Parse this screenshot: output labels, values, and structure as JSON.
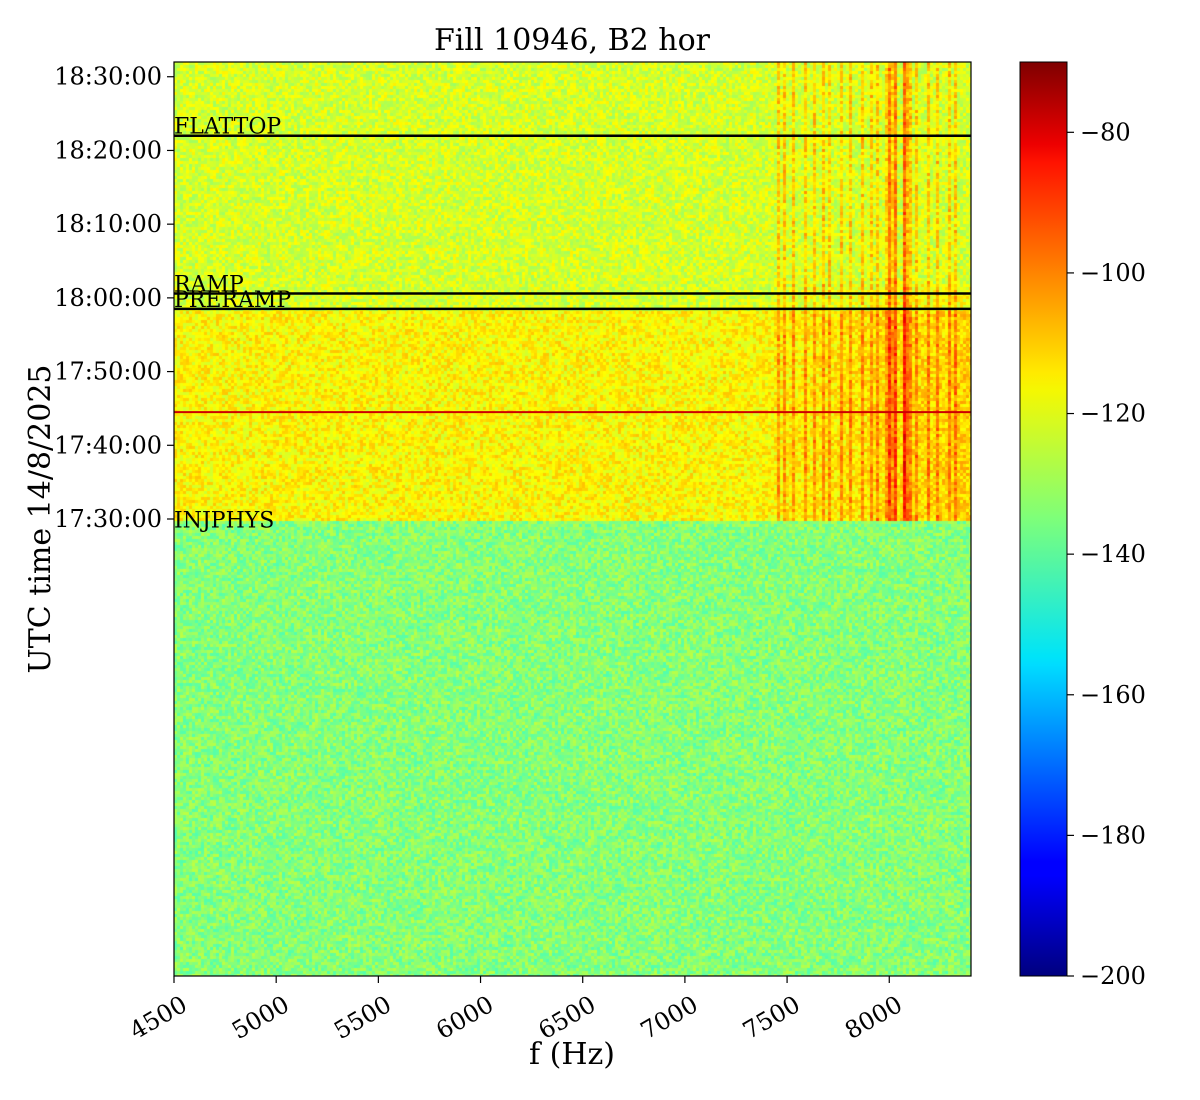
{
  "chart_data": {
    "type": "heatmap",
    "title": "Fill 10946, B2 hor",
    "xlabel": "f (Hz)",
    "ylabel": "UTC time 14/8/2025",
    "xlim": [
      4500,
      8400
    ],
    "ylim_minutes": [
      1708,
      1832
    ],
    "x_ticks": [
      {
        "value": 4500,
        "label": "4500"
      },
      {
        "value": 5000,
        "label": "5000"
      },
      {
        "value": 5500,
        "label": "5500"
      },
      {
        "value": 6000,
        "label": "6000"
      },
      {
        "value": 6500,
        "label": "6500"
      },
      {
        "value": 7000,
        "label": "7000"
      },
      {
        "value": 7500,
        "label": "7500"
      },
      {
        "value": 8000,
        "label": "8000"
      }
    ],
    "y_ticks": [
      {
        "value": 1830,
        "label": "18:30:00"
      },
      {
        "value": 1820,
        "label": "18:20:00"
      },
      {
        "value": 1810,
        "label": "18:10:00"
      },
      {
        "value": 1800,
        "label": "18:00:00"
      },
      {
        "value": 1790,
        "label": "17:50:00"
      },
      {
        "value": 1780,
        "label": "17:40:00"
      },
      {
        "value": 1770,
        "label": "17:30:00"
      }
    ],
    "colorbar": {
      "colormap": "jet",
      "range": [
        -200,
        -70
      ],
      "ticks": [
        {
          "value": -80,
          "label": "−80"
        },
        {
          "value": -100,
          "label": "−100"
        },
        {
          "value": -120,
          "label": "−120"
        },
        {
          "value": -140,
          "label": "−140"
        },
        {
          "value": -160,
          "label": "−160"
        },
        {
          "value": -180,
          "label": "−180"
        },
        {
          "value": -200,
          "label": "−200"
        }
      ]
    },
    "phase_markers": [
      {
        "label": "FLATTOP",
        "time": 1822,
        "color": "#000000"
      },
      {
        "label": "RAMP",
        "time": 1800.6,
        "color": "#000000"
      },
      {
        "label": "PRERAMP",
        "time": 1798.5,
        "color": "#000000"
      },
      {
        "label": "INJPHYS",
        "time": 1768.6,
        "color": "#000000"
      }
    ],
    "marker_line": {
      "time": 1784.5,
      "color": "#cc0000"
    },
    "grid": false
  }
}
